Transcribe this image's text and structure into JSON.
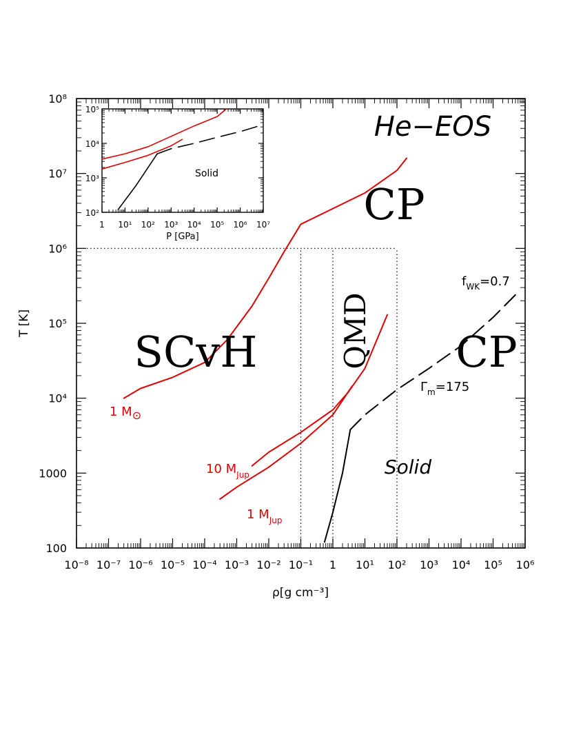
{
  "chart_data": {
    "type": "line",
    "title": "He−EOS",
    "xlabel": "ρ[g cm⁻³]",
    "ylabel": "T [K]",
    "xscale": "log",
    "yscale": "log",
    "xlim": [
      1e-08,
      1000000.0
    ],
    "ylim": [
      100,
      100000000.0
    ],
    "x_tick_labels": [
      "10⁻⁸",
      "10⁻⁷",
      "10⁻⁶",
      "10⁻⁵",
      "10⁻⁴",
      "10⁻³",
      "10⁻²",
      "10⁻¹",
      "1",
      "10¹",
      "10²",
      "10³",
      "10⁴",
      "10⁵",
      "10⁶"
    ],
    "y_tick_labels": [
      "100",
      "1000",
      "10⁴",
      "10⁵",
      "10⁶",
      "10⁷",
      "10⁸"
    ],
    "regions": [
      {
        "label": "SCvH"
      },
      {
        "label": "CP"
      },
      {
        "label": "QMD"
      },
      {
        "label": "CP"
      },
      {
        "label": "Solid"
      }
    ],
    "annotations": {
      "fwk": "f",
      "fwk_sub": "WK",
      "fwk_val": "=0.7",
      "gamma": "Γ",
      "gamma_sub": "m",
      "gamma_val": "=175"
    },
    "series": [
      {
        "name": "1 M⊙",
        "color": "#e00000",
        "style": "solid",
        "points": [
          [
            3e-07,
            10000.0
          ],
          [
            1e-06,
            13500.0
          ],
          [
            1e-05,
            19000.0
          ],
          [
            0.0001,
            30000.0
          ],
          [
            0.0005,
            60000.0
          ],
          [
            0.003,
            170000.0
          ],
          [
            0.01,
            400000.0
          ],
          [
            0.03,
            900000.0
          ],
          [
            0.1,
            2100000.0
          ],
          [
            1,
            3400000.0
          ],
          [
            10.0,
            5500000.0
          ],
          [
            100.0,
            11000000.0
          ],
          [
            200.0,
            16000000.0
          ]
        ]
      },
      {
        "name": "10 M_Jup",
        "color": "#e00000",
        "style": "solid",
        "points": [
          [
            0.003,
            1250
          ],
          [
            0.01,
            1900
          ],
          [
            0.1,
            3500
          ],
          [
            1,
            7000
          ],
          [
            3,
            12000.0
          ],
          [
            10.0,
            25000.0
          ],
          [
            50.0,
            130000.0
          ]
        ]
      },
      {
        "name": "1 M_Jup",
        "color": "#e00000",
        "style": "solid",
        "points": [
          [
            0.0003,
            450
          ],
          [
            0.001,
            650
          ],
          [
            0.01,
            1200
          ],
          [
            0.1,
            2500
          ],
          [
            1,
            6000
          ],
          [
            4,
            14500.0
          ]
        ]
      },
      {
        "name": "melting",
        "color": "#000000",
        "style": "solid",
        "points": [
          [
            0.55,
            120
          ],
          [
            1,
            300
          ],
          [
            2,
            1000
          ],
          [
            3.5,
            3800
          ]
        ]
      },
      {
        "name": "melting-ext",
        "color": "#000000",
        "style": "dashed",
        "points": [
          [
            3.5,
            3800
          ],
          [
            10.0,
            6000
          ],
          [
            100.0,
            13000.0
          ],
          [
            1000.0,
            25000.0
          ],
          [
            10000.0,
            50000.0
          ],
          [
            100000.0,
            120000.0
          ],
          [
            600000.0,
            260000.0
          ]
        ]
      }
    ],
    "boundaries": [
      {
        "points": [
          [
            1e-08,
            1000000.0
          ],
          [
            100.0,
            1000000.0
          ]
        ]
      },
      {
        "points": [
          [
            0.1,
            100
          ],
          [
            0.1,
            1000000.0
          ]
        ]
      },
      {
        "points": [
          [
            1,
            100
          ],
          [
            1,
            1000000.0
          ]
        ]
      },
      {
        "points": [
          [
            100.0,
            100
          ],
          [
            100.0,
            1000000.0
          ]
        ]
      }
    ],
    "labels": {
      "sun_main": "1 M",
      "sun_sub": "⊙",
      "jup10_main": "10 M",
      "jup10_sub": "Jup",
      "jup1_main": "1 M",
      "jup1_sub": "Jup"
    },
    "inset": {
      "xlabel": "P [GPa]",
      "xscale": "log",
      "yscale": "log",
      "xlim": [
        1,
        10000000.0
      ],
      "ylim": [
        100,
        100000.0
      ],
      "x_tick_labels": [
        "1",
        "10¹",
        "10²",
        "10³",
        "10⁴",
        "10⁵",
        "10⁶",
        "10⁷"
      ],
      "y_tick_labels": [
        "10²",
        "10³",
        "10⁴",
        "10⁵"
      ],
      "label": "Solid",
      "series": [
        {
          "name": "inset-red-upper",
          "color": "#e00000",
          "style": "solid",
          "points": [
            [
              1,
              3500
            ],
            [
              10.0,
              5000
            ],
            [
              100.0,
              8000
            ],
            [
              1000.0,
              16000.0
            ],
            [
              10000.0,
              32000.0
            ],
            [
              100000.0,
              60000.0
            ],
            [
              250000.0,
              100000.0
            ]
          ]
        },
        {
          "name": "inset-red-lower",
          "color": "#e00000",
          "style": "solid",
          "points": [
            [
              1,
              1800
            ],
            [
              10.0,
              2800
            ],
            [
              100.0,
              4500
            ],
            [
              1000.0,
              8500
            ],
            [
              3000.0,
              13000.0
            ]
          ]
        },
        {
          "name": "inset-black-solid",
          "color": "#000000",
          "style": "solid",
          "points": [
            [
              5,
              120
            ],
            [
              30,
              600
            ],
            [
              250,
              5000
            ]
          ]
        },
        {
          "name": "inset-black-dashed",
          "color": "#000000",
          "style": "dashed",
          "points": [
            [
              250,
              5000
            ],
            [
              1000.0,
              7000
            ],
            [
              10000.0,
              10000.0
            ],
            [
              100000.0,
              15000.0
            ],
            [
              1000000.0,
              22000.0
            ],
            [
              10000000.0,
              35000.0
            ]
          ]
        }
      ]
    }
  }
}
